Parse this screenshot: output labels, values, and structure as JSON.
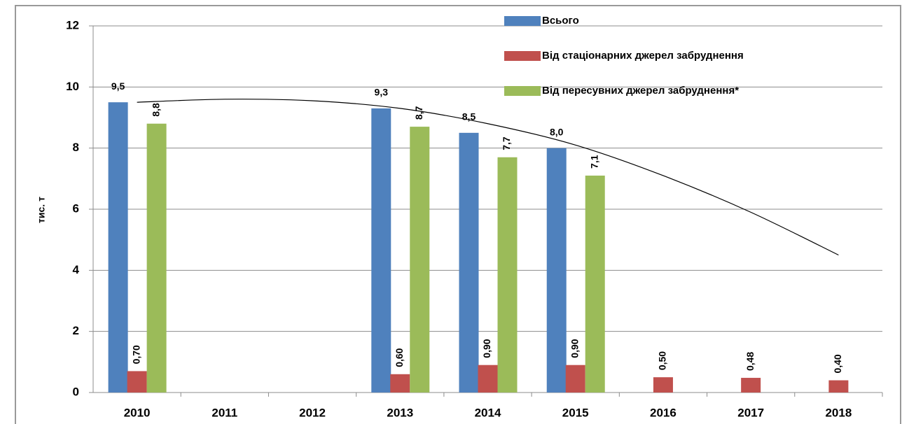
{
  "chart_data": {
    "type": "bar",
    "y_label": "тис. т",
    "categories": [
      "2010",
      "2011",
      "2012",
      "2013",
      "2014",
      "2015",
      "2016",
      "2017",
      "2018"
    ],
    "series": [
      {
        "name": "Всього",
        "color": "#4f81bd",
        "values": [
          9.5,
          null,
          null,
          9.3,
          8.5,
          8.0,
          null,
          null,
          null
        ],
        "value_labels": [
          "9,5",
          null,
          null,
          "9,3",
          "8,5",
          "8,0",
          null,
          null,
          null
        ]
      },
      {
        "name": "Від стаціонарних джерел забруднення",
        "color": "#c0504d",
        "values": [
          0.7,
          null,
          null,
          0.6,
          0.9,
          0.9,
          0.5,
          0.48,
          0.4
        ],
        "value_labels": [
          "0,70",
          null,
          null,
          "0,60",
          "0,90",
          "0,90",
          "0,50",
          "0,48",
          "0,40"
        ]
      },
      {
        "name": "Від пересувних джерел забруднення*",
        "color": "#9bbb59",
        "values": [
          8.8,
          null,
          null,
          8.7,
          7.7,
          7.1,
          null,
          null,
          null
        ],
        "value_labels": [
          "8,8",
          null,
          null,
          "8,7",
          "7,7",
          "7,1",
          null,
          null,
          null
        ]
      }
    ],
    "trendline": {
      "color": "#000000",
      "values": [
        9.5,
        9.6,
        9.55,
        9.3,
        8.8,
        8.1,
        7.1,
        5.9,
        4.5
      ]
    },
    "ylim": [
      0,
      12
    ],
    "yticks": [
      0,
      2,
      4,
      6,
      8,
      10,
      12
    ],
    "grid": true
  }
}
